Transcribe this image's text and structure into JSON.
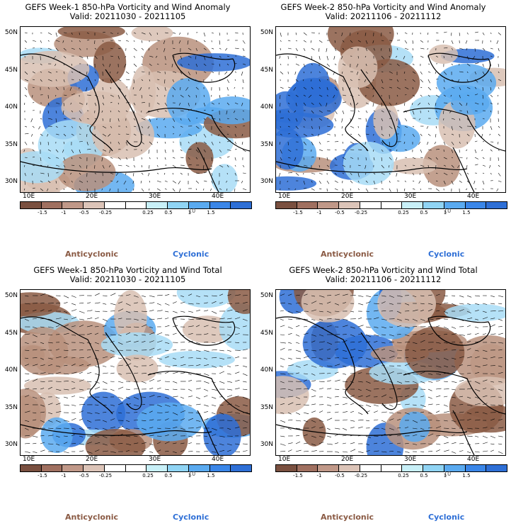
{
  "colors": {
    "anticyclonic": "#8a5a44",
    "cyclonic": "#2e6fd6",
    "scale": [
      "#7a5040",
      "#a07060",
      "#c09888",
      "#dcc4b8",
      "#ffffff",
      "#ffffff",
      "#c8f0f8",
      "#90d4f4",
      "#5aaaf0",
      "#3a86e8",
      "#2e6fd6"
    ]
  },
  "axes": {
    "lat_labels": [
      "50N",
      "45N",
      "40N",
      "35N",
      "30N"
    ],
    "lon_labels": [
      "10E",
      "20E",
      "30E",
      "40E"
    ]
  },
  "colorbar": {
    "ticks": [
      "-1.5",
      "-1",
      "-0.5",
      "-0.25",
      "0.25",
      "0.5",
      "1",
      "1.5"
    ],
    "unit": "10"
  },
  "legend": {
    "anticyclonic": "Anticyclonic",
    "cyclonic": "Cyclonic"
  },
  "panels": [
    {
      "title": "GEFS Week-1 850-hPa Vorticity and Wind Anomaly",
      "valid": "Valid: 20211030 - 20211105"
    },
    {
      "title": "GEFS Week-2 850-hPa Vorticity and Wind Anomaly",
      "valid": "Valid: 20211106 - 20211112"
    },
    {
      "title": "GEFS Week-1 850-hPa Vorticity and Wind Total",
      "valid": "Valid: 20211030 - 20211105"
    },
    {
      "title": "GEFS Week-2 850-hPa Vorticity and Wind Total",
      "valid": "Valid: 20211106 - 20211112"
    }
  ]
}
